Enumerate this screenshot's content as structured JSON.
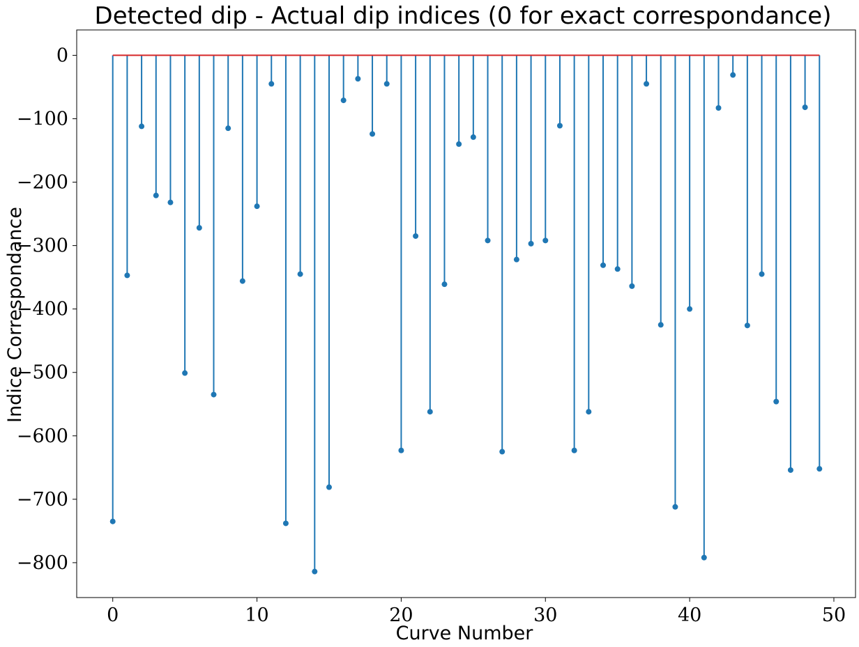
{
  "chart_data": {
    "type": "stem",
    "title": "Detected dip - Actual dip indices (0 for exact correspondance)",
    "xlabel": "Curve Number",
    "ylabel": "Indice Correspondance",
    "xlim": [
      -2.5,
      51.5
    ],
    "ylim": [
      -855,
      40
    ],
    "xticks": [
      0,
      10,
      20,
      30,
      40,
      50
    ],
    "xtick_labels": [
      "0",
      "10",
      "20",
      "30",
      "40",
      "50"
    ],
    "yticks": [
      0,
      -100,
      -200,
      -300,
      -400,
      -500,
      -600,
      -700,
      -800
    ],
    "ytick_labels": [
      "0",
      "−100",
      "−200",
      "−300",
      "−400",
      "−500",
      "−600",
      "−700",
      "−800"
    ],
    "baseline": 0,
    "grid": false,
    "colors": {
      "stem": "#1f77b4",
      "baseline": "#d62728"
    },
    "x": [
      0,
      1,
      2,
      3,
      4,
      5,
      6,
      7,
      8,
      9,
      10,
      11,
      12,
      13,
      14,
      15,
      16,
      17,
      18,
      19,
      20,
      21,
      22,
      23,
      24,
      25,
      26,
      27,
      28,
      29,
      30,
      31,
      32,
      33,
      34,
      35,
      36,
      37,
      38,
      39,
      40,
      41,
      42,
      43,
      44,
      45,
      46,
      47,
      48,
      49
    ],
    "values": [
      -735,
      -347,
      -112,
      -221,
      -232,
      -501,
      -272,
      -535,
      -115,
      -356,
      -238,
      -45,
      -738,
      -345,
      -814,
      -681,
      -71,
      -37,
      -124,
      -45,
      -623,
      -285,
      -562,
      -361,
      -140,
      -129,
      -292,
      -625,
      -322,
      -297,
      -292,
      -111,
      -623,
      -562,
      -331,
      -337,
      -364,
      -45,
      -425,
      -712,
      -400,
      -792,
      -83,
      -31,
      -426,
      -345,
      -546,
      -654,
      -82,
      -652
    ]
  }
}
